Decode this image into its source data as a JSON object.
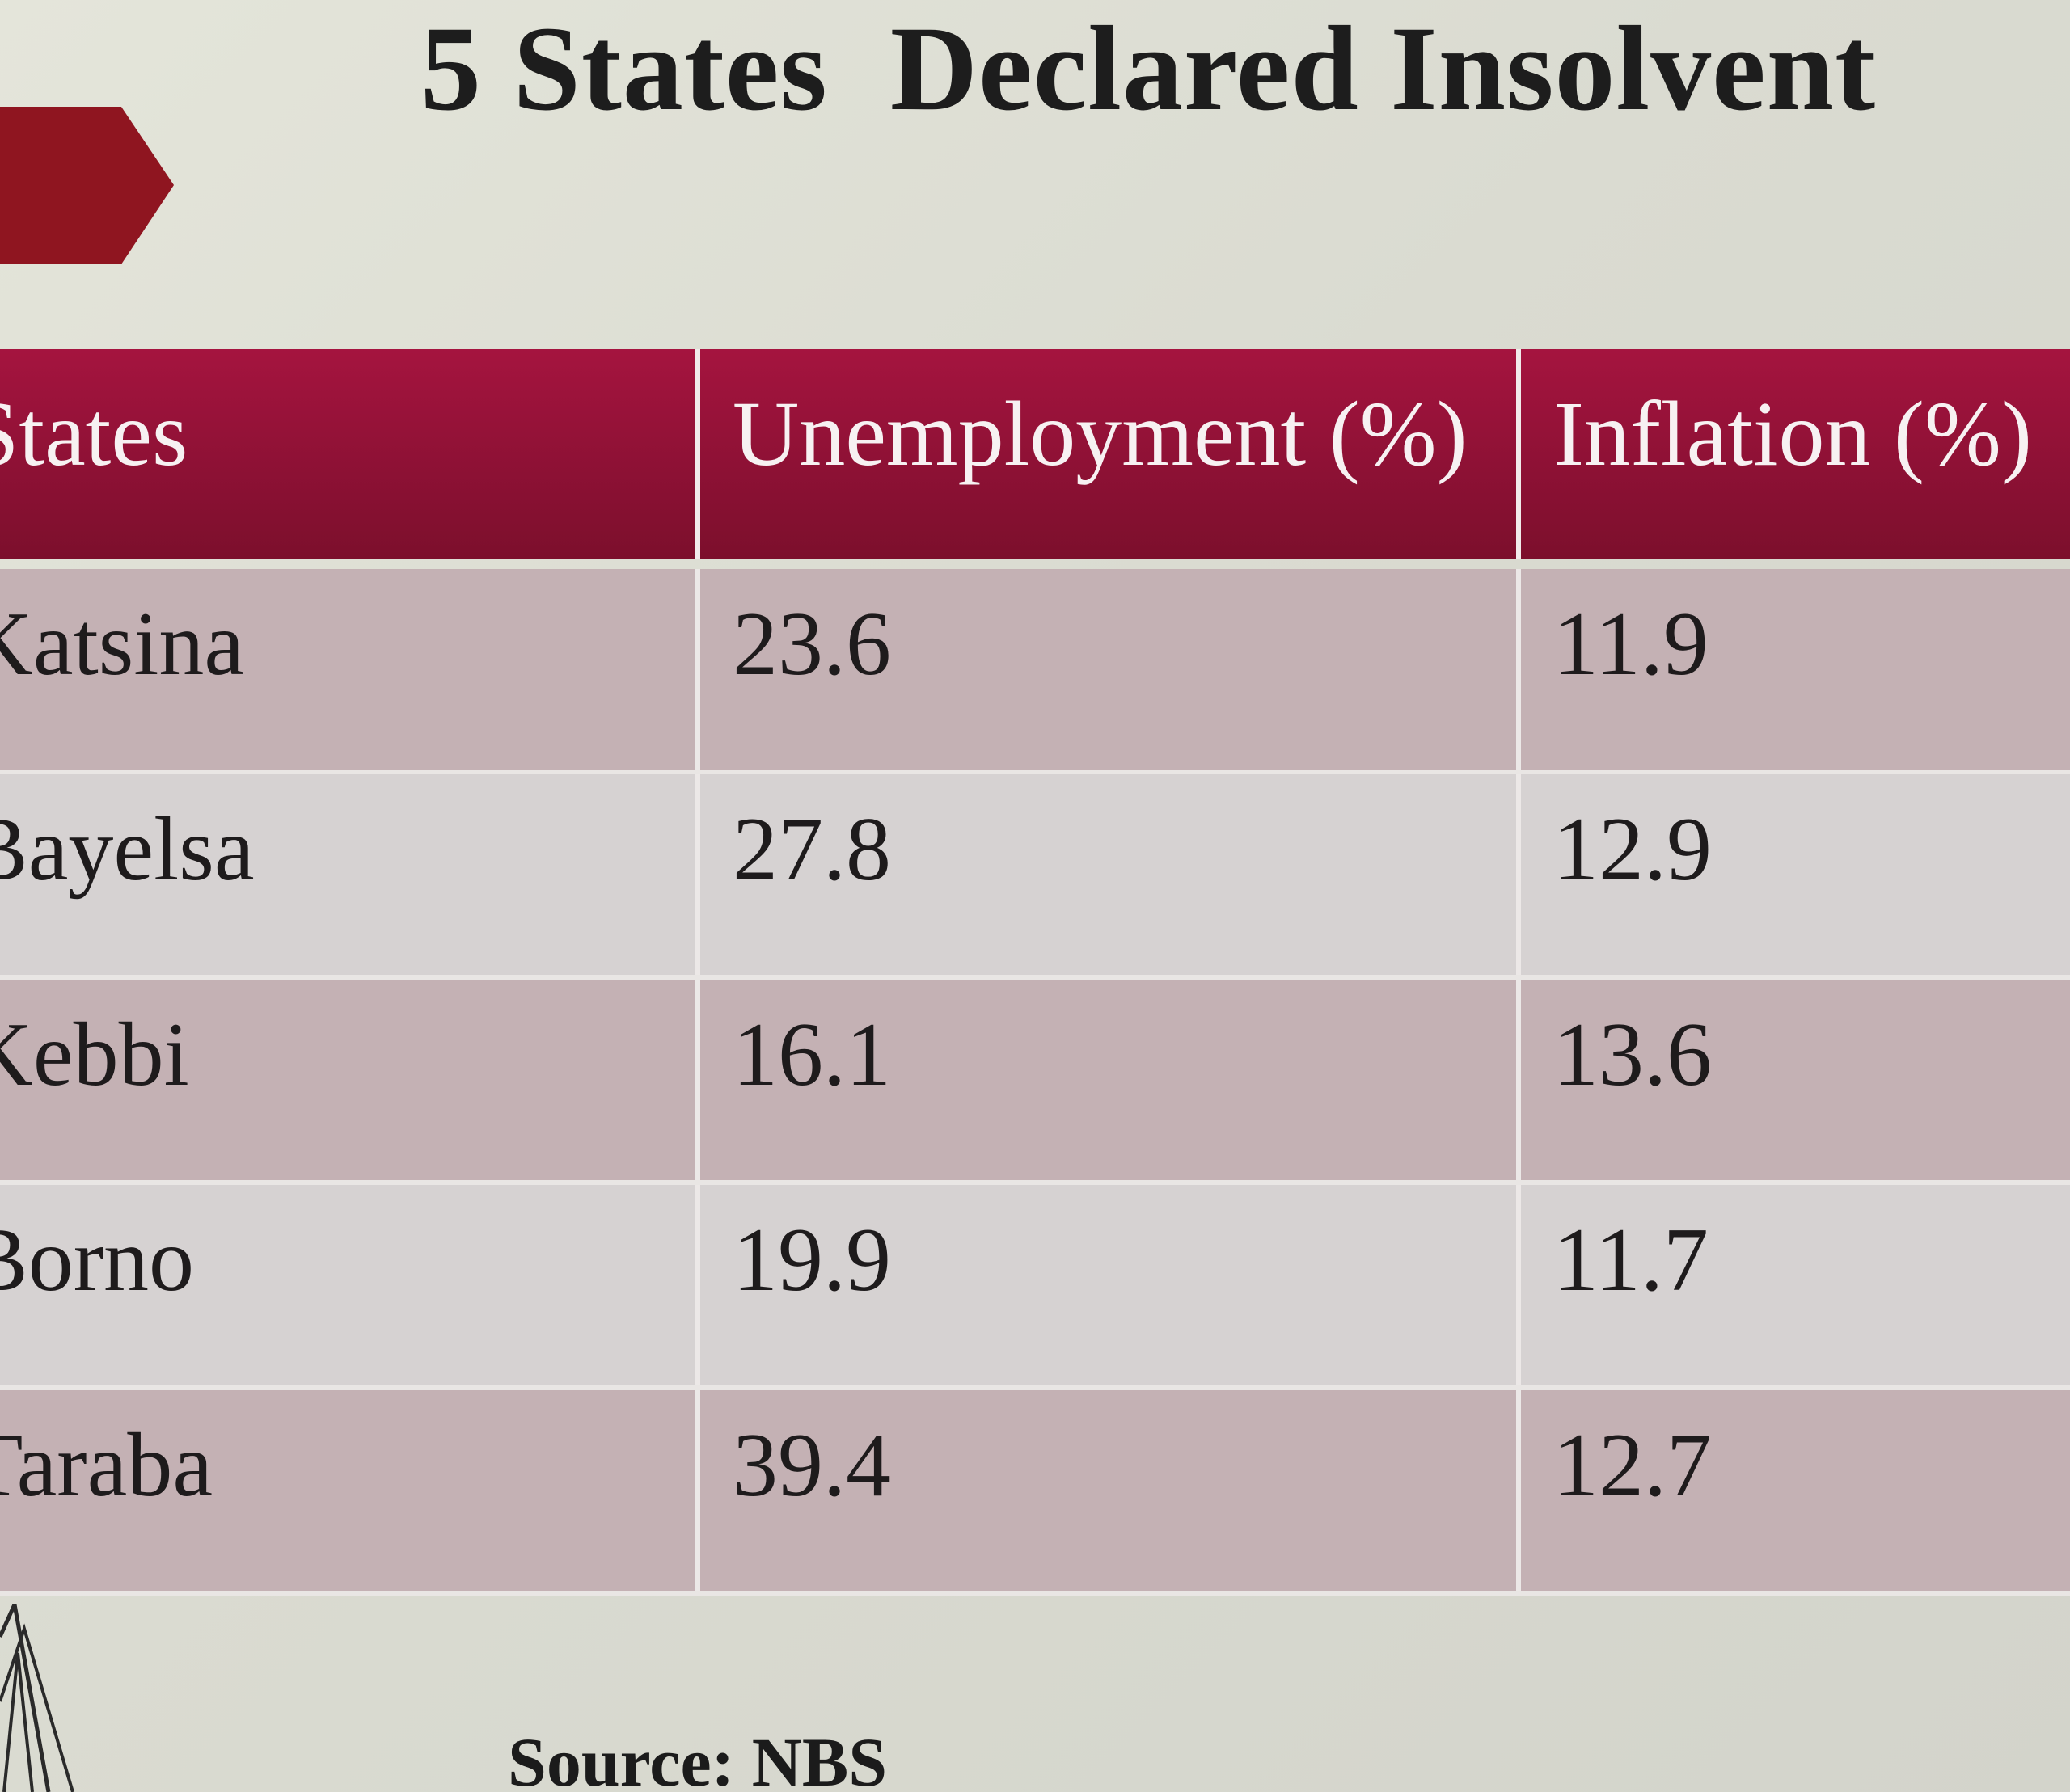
{
  "title": "5 States  Declared Insolvent",
  "table": {
    "headers": [
      "States",
      "Unemployment (%)",
      "Inflation (%)"
    ],
    "rows": [
      [
        "Katsina",
        "23.6",
        "11.9"
      ],
      [
        "Bayelsa",
        "27.8",
        "12.9"
      ],
      [
        "Kebbi",
        "16.1",
        "13.6"
      ],
      [
        "Borno",
        "19.9",
        "11.7"
      ],
      [
        "Taraba",
        "39.4",
        "12.7"
      ]
    ]
  },
  "source": "Source: NBS",
  "colors": {
    "header": "#8e1135",
    "row_odd": "#c4b1b4",
    "row_even": "#d6d2d2",
    "arrow": "#8f1520"
  }
}
